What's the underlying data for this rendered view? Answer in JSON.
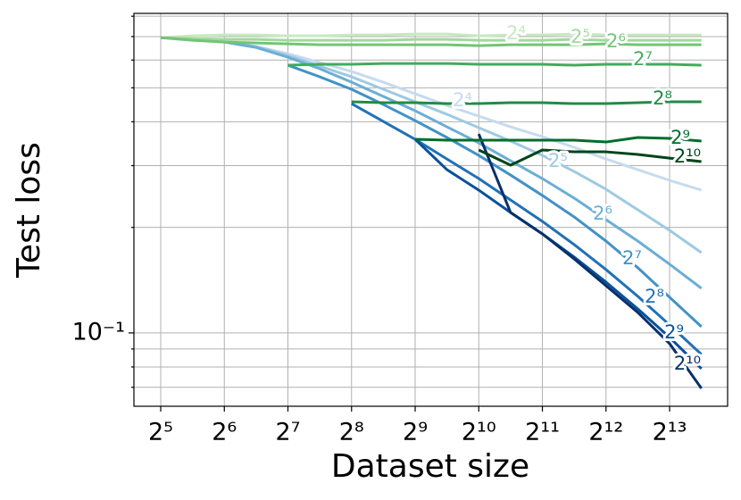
{
  "chart_data": {
    "type": "line",
    "x_label": "Dataset size",
    "y_label": "Test loss",
    "x": [
      32,
      45.25,
      64,
      90.51,
      128,
      181.02,
      256,
      362.04,
      512,
      724.08,
      1024,
      1448.15,
      2048,
      2896.31,
      4096,
      5792.62,
      8192,
      11585.24
    ],
    "xlim": [
      23.9,
      15410
    ],
    "ylim": [
      0.0618,
      0.815
    ],
    "xscale": "log",
    "yscale": "log",
    "grid": true,
    "xticks": [
      {
        "value": 32,
        "label": "2⁵"
      },
      {
        "value": 64,
        "label": "2⁶"
      },
      {
        "value": 128,
        "label": "2⁷"
      },
      {
        "value": 256,
        "label": "2⁸"
      },
      {
        "value": 512,
        "label": "2⁹"
      },
      {
        "value": 1024,
        "label": "2¹⁰"
      },
      {
        "value": 2048,
        "label": "2¹¹"
      },
      {
        "value": 4096,
        "label": "2¹²"
      },
      {
        "value": 8192,
        "label": "2¹³"
      }
    ],
    "yticks": [
      {
        "value": 0.1,
        "label": "10⁻¹"
      }
    ],
    "yminorticks": [
      0.07,
      0.08,
      0.09,
      0.2,
      0.3,
      0.4,
      0.5,
      0.6,
      0.7,
      0.8
    ],
    "series": [
      {
        "name": "2⁴",
        "color": "#c6dbef",
        "values": [
          0.6952,
          0.6872,
          0.6752,
          0.6556,
          0.6256,
          0.5902,
          0.5567,
          0.5188,
          0.4808,
          0.4455,
          0.4152,
          0.387,
          0.3629,
          0.3382,
          0.3133,
          0.2921,
          0.2723,
          0.2554
        ]
      },
      {
        "name": "2⁵",
        "color": "#9ecae1",
        "values": [
          0.6952,
          0.6872,
          0.6752,
          0.6556,
          0.6183,
          0.5766,
          0.5376,
          0.4951,
          0.456,
          0.4201,
          0.3848,
          0.3524,
          0.3208,
          0.2887,
          0.2569,
          0.2244,
          0.1961,
          0.1694
        ]
      },
      {
        "name": "2⁶",
        "color": "#6baed6",
        "values": [
          0.6952,
          0.6872,
          0.6752,
          0.6517,
          0.6112,
          0.5666,
          0.5188,
          0.4725,
          0.4301,
          0.387,
          0.3483,
          0.3097,
          0.2755,
          0.2423,
          0.2104,
          0.1828,
          0.157,
          0.134
        ]
      },
      {
        "name": "2⁷",
        "color": "#4292c6",
        "values": [
          null,
          null,
          null,
          null,
          0.58,
          0.5376,
          0.4951,
          0.4481,
          0.4032,
          0.3608,
          0.3208,
          0.282,
          0.2466,
          0.2142,
          0.1828,
          0.1534,
          0.1264,
          0.1042
        ]
      },
      {
        "name": "2⁸",
        "color": "#2171b5",
        "values": [
          null,
          null,
          null,
          null,
          null,
          null,
          0.4507,
          0.4009,
          0.3566,
          0.3133,
          0.2755,
          0.2394,
          0.208,
          0.1786,
          0.1516,
          0.1272,
          0.1054,
          0.0869
        ]
      },
      {
        "name": "2⁹",
        "color": "#08519c",
        "values": [
          null,
          null,
          null,
          null,
          null,
          null,
          null,
          null,
          0.3566,
          0.2921,
          0.2554,
          0.2205,
          0.1916,
          0.1645,
          0.1396,
          0.1171,
          0.0971,
          0.0791
        ]
      },
      {
        "name": "2¹⁰",
        "color": "#08306b",
        "values": [
          null,
          null,
          null,
          null,
          null,
          null,
          null,
          null,
          null,
          null,
          0.3693,
          0.2205,
          0.1916,
          0.1626,
          0.1364,
          0.1144,
          0.0932,
          0.0695
        ]
      },
      {
        "name": "2⁴",
        "color": "#c7e9c0",
        "values": [
          0.6952,
          0.7034,
          0.7076,
          0.7076,
          0.7034,
          0.7034,
          0.7076,
          0.7076,
          0.7116,
          0.7116,
          0.7034,
          0.7076,
          0.7076,
          0.7116,
          0.7076,
          0.7076,
          0.7076,
          0.7076
        ]
      },
      {
        "name": "2⁵",
        "color": "#a1d99b",
        "values": [
          0.6952,
          0.6912,
          0.6872,
          0.6872,
          0.6831,
          0.6831,
          0.6831,
          0.6831,
          0.6872,
          0.6872,
          0.6831,
          0.6831,
          0.6831,
          0.6872,
          0.6831,
          0.6831,
          0.6831,
          0.6831
        ]
      },
      {
        "name": "2⁶",
        "color": "#74c476",
        "values": [
          0.6952,
          0.6831,
          0.6752,
          0.6713,
          0.6673,
          0.6634,
          0.6634,
          0.6634,
          0.6634,
          0.6634,
          0.6594,
          0.6634,
          0.6634,
          0.6634,
          0.6673,
          0.6634,
          0.6634,
          0.6634
        ]
      },
      {
        "name": "2⁷",
        "color": "#41ab5d",
        "values": [
          null,
          null,
          null,
          null,
          0.58,
          0.5833,
          0.5833,
          0.5867,
          0.5867,
          0.5867,
          0.5833,
          0.5833,
          0.5833,
          0.58,
          0.5833,
          0.5833,
          0.5833,
          0.58
        ]
      },
      {
        "name": "2⁸",
        "color": "#238b45",
        "values": [
          null,
          null,
          null,
          null,
          null,
          null,
          0.456,
          0.4534,
          0.4534,
          0.4507,
          0.4507,
          0.4534,
          0.4534,
          0.4507,
          0.4507,
          0.4534,
          0.456,
          0.456
        ]
      },
      {
        "name": "2⁹",
        "color": "#006d2c",
        "values": [
          null,
          null,
          null,
          null,
          null,
          null,
          null,
          null,
          0.3566,
          0.3545,
          0.3545,
          0.3545,
          0.3545,
          0.3545,
          0.3503,
          0.3608,
          0.3587,
          0.3524
        ]
      },
      {
        "name": "2¹⁰",
        "color": "#00441b",
        "values": [
          null,
          null,
          null,
          null,
          null,
          null,
          null,
          null,
          null,
          null,
          0.3323,
          0.3008,
          0.3323,
          0.3284,
          0.3284,
          0.3227,
          0.3151,
          0.3079
        ]
      }
    ]
  }
}
